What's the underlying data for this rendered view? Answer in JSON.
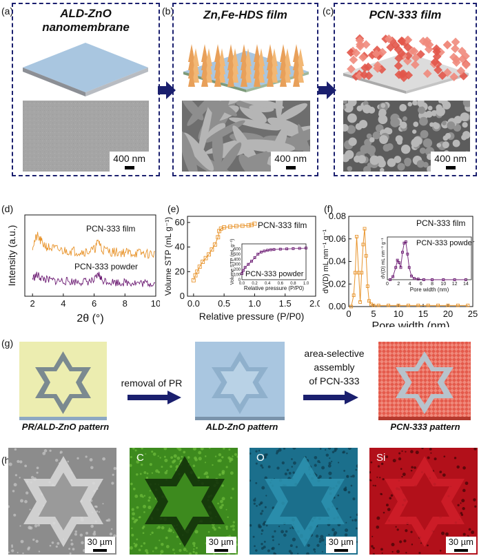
{
  "panels": {
    "a": {
      "label": "(a)",
      "title_line1": "ALD-ZnO",
      "title_line2": "nanomembrane",
      "scale": "400 nm"
    },
    "b": {
      "label": "(b)",
      "title": "Zn,Fe-HDS film",
      "scale": "400 nm"
    },
    "c": {
      "label": "(c)",
      "title": "PCN-333 film",
      "scale": "400 nm"
    },
    "d": {
      "label": "(d)"
    },
    "e": {
      "label": "(e)"
    },
    "f": {
      "label": "(f)"
    },
    "g": {
      "label": "(g)",
      "step1": "removal of PR",
      "step2_line1": "area-selective",
      "step2_line2": "assembly",
      "step2_line3": "of PCN-333",
      "pattern1": "PR/ALD-ZnO pattern",
      "pattern2": "ALD-ZnO pattern",
      "pattern3": "PCN-333 pattern"
    },
    "h": {
      "label": "(h)",
      "maps": [
        "",
        "C",
        "O",
        "Si"
      ],
      "scale": "30 µm"
    }
  },
  "colors": {
    "frame": "#1a1f6e",
    "orange": "#e8932a",
    "purple": "#6b1a72",
    "zno": "#a9c6e0",
    "pcn": "#e04a3c",
    "pr": "#ecedb0"
  },
  "chart_data": [
    {
      "type": "line",
      "panel": "d",
      "xlabel": "2θ (°)",
      "ylabel": "Intensity (a.u.)",
      "xlim": [
        1.5,
        10
      ],
      "xticks": [
        2,
        4,
        6,
        8,
        10
      ],
      "series": [
        {
          "name": "PCN-333 film",
          "x": [
            2.0,
            2.3,
            2.6,
            3.0,
            3.5,
            4.0,
            4.5,
            5.0,
            5.5,
            6.0,
            6.3,
            6.5,
            7.0,
            7.5,
            8.0,
            8.5,
            9.0,
            9.5,
            10.0
          ],
          "values": [
            0.62,
            0.74,
            0.66,
            0.6,
            0.58,
            0.56,
            0.56,
            0.55,
            0.55,
            0.57,
            0.68,
            0.58,
            0.55,
            0.54,
            0.54,
            0.53,
            0.53,
            0.52,
            0.52
          ]
        },
        {
          "name": "PCN-333 powder",
          "x": [
            2.0,
            2.3,
            2.6,
            3.0,
            3.5,
            4.0,
            4.5,
            5.0,
            5.5,
            6.0,
            6.3,
            6.5,
            7.0,
            7.5,
            8.0,
            8.5,
            9.0,
            9.5,
            10.0
          ],
          "values": [
            0.22,
            0.26,
            0.22,
            0.2,
            0.19,
            0.19,
            0.18,
            0.18,
            0.18,
            0.19,
            0.27,
            0.2,
            0.18,
            0.17,
            0.17,
            0.17,
            0.16,
            0.16,
            0.16
          ]
        }
      ]
    },
    {
      "type": "line",
      "panel": "e",
      "xlabel": "Relative pressure (P/P0)",
      "ylabel": "Volume STP (mL g⁻¹)",
      "xlim": [
        -0.1,
        2.0
      ],
      "ylim": [
        0,
        65
      ],
      "xticks": [
        0.0,
        0.5,
        1.0,
        1.5,
        2.0
      ],
      "yticks": [
        0,
        20,
        40,
        60
      ],
      "series": [
        {
          "name": "PCN-333 film",
          "x": [
            0.0,
            0.03,
            0.06,
            0.1,
            0.15,
            0.2,
            0.25,
            0.3,
            0.35,
            0.4,
            0.42,
            0.45,
            0.5,
            0.6,
            0.7,
            0.8,
            0.9,
            0.95,
            1.0
          ],
          "values": [
            13,
            17,
            20,
            24,
            28,
            31,
            34,
            38,
            42,
            48,
            53,
            55,
            56,
            56.5,
            57,
            57.3,
            57.6,
            58,
            59
          ]
        }
      ],
      "inset": {
        "xlabel": "Relative pressure (P/P0)",
        "ylabel": "Volume STP (mL g⁻¹)",
        "xlim": [
          0,
          1.0
        ],
        "ylim": [
          0,
          700
        ],
        "xticks": [
          0.0,
          0.2,
          0.4,
          0.6,
          0.8,
          1.0
        ],
        "yticks": [
          0,
          100,
          200,
          300,
          400,
          500,
          600
        ],
        "series": [
          {
            "name": "PCN-333 powder",
            "x": [
              0.0,
              0.02,
              0.05,
              0.1,
              0.15,
              0.2,
              0.25,
              0.3,
              0.35,
              0.4,
              0.45,
              0.5,
              0.6,
              0.7,
              0.8,
              0.9,
              1.0
            ],
            "values": [
              120,
              180,
              240,
              300,
              360,
              430,
              500,
              540,
              560,
              575,
              585,
              590,
              597,
              602,
              607,
              612,
              618
            ]
          }
        ]
      }
    },
    {
      "type": "line",
      "panel": "f",
      "xlabel": "Pore width (nm)",
      "ylabel": "dV(D) mL nm⁻¹ g⁻¹",
      "xlim": [
        0,
        25
      ],
      "ylim": [
        0,
        0.08
      ],
      "xticks": [
        0,
        5,
        10,
        15,
        20,
        25
      ],
      "yticks": [
        0.0,
        0.02,
        0.04,
        0.06,
        0.08
      ],
      "series": [
        {
          "name": "PCN-333 film",
          "x": [
            0.5,
            1.0,
            1.3,
            1.6,
            2.0,
            2.3,
            2.6,
            2.9,
            3.2,
            3.5,
            3.8,
            4.1,
            4.5,
            5.0,
            6,
            8,
            10,
            12,
            14,
            16,
            18,
            20,
            22,
            24
          ],
          "values": [
            0.0,
            0.01,
            0.03,
            0.062,
            0.03,
            0.004,
            0.03,
            0.055,
            0.069,
            0.045,
            0.018,
            0.005,
            0.002,
            0.001,
            0.001,
            0.001,
            0.001,
            0.001,
            0.001,
            0.001,
            0.001,
            0.001,
            0.001,
            0.001
          ]
        }
      ],
      "inset": {
        "xlabel": "Pore width (nm)",
        "ylabel": "dV(D) mL nm⁻¹ g⁻¹",
        "xlim": [
          0,
          15
        ],
        "ylim": [
          0,
          0.7
        ],
        "xticks": [
          0,
          2,
          4,
          6,
          8,
          10,
          12,
          14
        ],
        "series": [
          {
            "name": "PCN-333 powder",
            "x": [
              0.5,
              1.0,
              1.5,
              1.8,
              2.1,
              2.4,
              2.7,
              3.0,
              3.3,
              3.6,
              3.9,
              4.3,
              4.8,
              5.5,
              6.5,
              8,
              10,
              12,
              14
            ],
            "values": [
              0.0,
              0.05,
              0.2,
              0.32,
              0.28,
              0.2,
              0.45,
              0.6,
              0.62,
              0.42,
              0.2,
              0.06,
              0.02,
              0.01,
              0.0,
              0.0,
              0.0,
              0.0,
              0.0
            ]
          }
        ]
      }
    }
  ]
}
